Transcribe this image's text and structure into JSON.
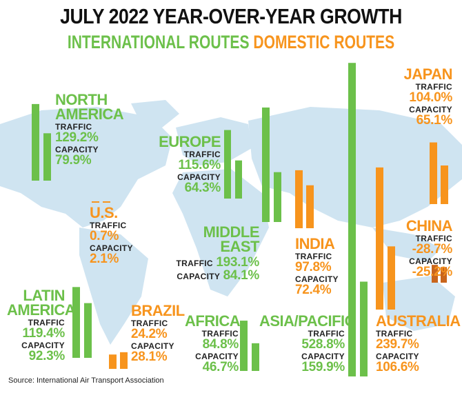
{
  "title": "JULY 2022 YEAR-OVER-YEAR GROWTH",
  "legend": {
    "international": "INTERNATIONAL ROUTES",
    "domestic": "DOMESTIC ROUTES"
  },
  "source": "Source: International Air Transport Association",
  "colors": {
    "international": "#6cc04a",
    "domestic": "#f7941d",
    "map": "#cfe4f1",
    "china_bars": "#c9651c"
  },
  "labels": {
    "traffic": "TRAFFIC",
    "capacity": "CAPACITY"
  },
  "chart_data": {
    "type": "bar",
    "title": "JULY 2022 YEAR-OVER-YEAR GROWTH",
    "unit": "%",
    "series_names": [
      "INTERNATIONAL ROUTES",
      "DOMESTIC ROUTES"
    ],
    "regions": [
      {
        "key": "north_america",
        "name": "NORTH\nAMERICA",
        "route": "international",
        "traffic": "129.2%",
        "capacity": "79.9%",
        "traffic_value": 129.2,
        "capacity_value": 79.9
      },
      {
        "key": "europe",
        "name": "EUROPE",
        "route": "international",
        "traffic": "115.6%",
        "capacity": "64.3%",
        "traffic_value": 115.6,
        "capacity_value": 64.3
      },
      {
        "key": "middle_east",
        "name": "MIDDLE EAST",
        "route": "international",
        "traffic": "193.1%",
        "capacity": "84.1%",
        "traffic_value": 193.1,
        "capacity_value": 84.1
      },
      {
        "key": "latin_america",
        "name": "LATIN\nAMERICA",
        "route": "international",
        "traffic": "119.4%",
        "capacity": "92.3%",
        "traffic_value": 119.4,
        "capacity_value": 92.3
      },
      {
        "key": "africa",
        "name": "AFRICA",
        "route": "international",
        "traffic": "84.8%",
        "capacity": "46.7%",
        "traffic_value": 84.8,
        "capacity_value": 46.7
      },
      {
        "key": "asia_pacific",
        "name": "ASIA/PACIFIC",
        "route": "international",
        "traffic": "528.8%",
        "capacity": "159.9%",
        "traffic_value": 528.8,
        "capacity_value": 159.9
      },
      {
        "key": "us",
        "name": "U.S.",
        "route": "domestic",
        "traffic": "0.7%",
        "capacity": "2.1%",
        "traffic_value": 0.7,
        "capacity_value": 2.1
      },
      {
        "key": "brazil",
        "name": "BRAZIL",
        "route": "domestic",
        "traffic": "24.2%",
        "capacity": "28.1%",
        "traffic_value": 24.2,
        "capacity_value": 28.1
      },
      {
        "key": "india",
        "name": "INDIA",
        "route": "domestic",
        "traffic": "97.8%",
        "capacity": "72.4%",
        "traffic_value": 97.8,
        "capacity_value": 72.4
      },
      {
        "key": "japan",
        "name": "JAPAN",
        "route": "domestic",
        "traffic": "104.0%",
        "capacity": "65.1%",
        "traffic_value": 104.0,
        "capacity_value": 65.1
      },
      {
        "key": "china",
        "name": "CHINA",
        "route": "domestic",
        "traffic": "-28.7%",
        "capacity": "-25.2%",
        "traffic_value": -28.7,
        "capacity_value": -25.2
      },
      {
        "key": "australia",
        "name": "AUSTRALIA",
        "route": "domestic",
        "traffic": "239.7%",
        "capacity": "106.6%",
        "traffic_value": 239.7,
        "capacity_value": 106.6
      }
    ]
  }
}
